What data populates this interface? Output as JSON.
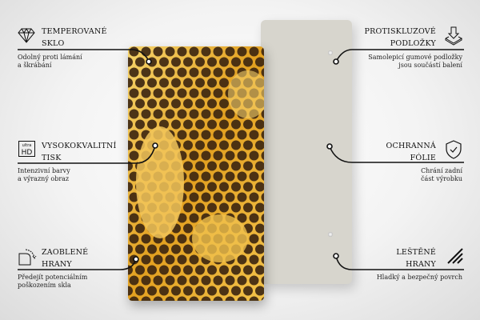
{
  "features": [
    {
      "id": "tempered",
      "title_line1": "TEMPEROVANÉ",
      "title_line2": "SKLO",
      "desc_line1": "Odolný proti lámání",
      "desc_line2": "a škrábání",
      "icon": "diamond-icon"
    },
    {
      "id": "anti-slip",
      "title_line1": "PROTISKLUZOVÉ",
      "title_line2": "PODLOŽKY",
      "desc_line1": "Samolepicí gumové podložky",
      "desc_line2": "jsou součástí balení",
      "icon": "pads-arrow-icon"
    },
    {
      "id": "print",
      "title_line1": "VYSOKOKVALITNÍ",
      "title_line2": "TISK",
      "desc_line1": "Intenzivní barvy",
      "desc_line2": "a výrazný obraz",
      "icon": "ultra-hd-icon",
      "icon_text_top": "ultra",
      "icon_text_bottom": "HD"
    },
    {
      "id": "foil",
      "title_line1": "OCHRANNÁ",
      "title_line2": "FÓLIE",
      "desc_line1": "Chrání zadní",
      "desc_line2": "část výrobku",
      "icon": "shield-check-icon"
    },
    {
      "id": "rounded",
      "title_line1": "ZAOBLENÉ",
      "title_line2": "HRANY",
      "desc_line1": "Předejít potenciálním",
      "desc_line2": "poškozením skla",
      "icon": "rounded-corner-icon"
    },
    {
      "id": "polished",
      "title_line1": "LEŠTĚNÉ",
      "title_line2": "HRANY",
      "desc_line1": "Hladký a bezpečný povrch",
      "icon": "polished-edges-icon"
    }
  ],
  "colors": {
    "honey": "#e8a91c",
    "cell": "#3a2410",
    "back_panel": "#d7d5cd"
  }
}
